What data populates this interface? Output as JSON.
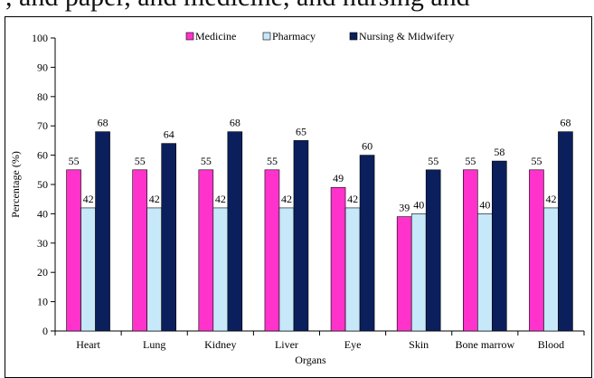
{
  "top_strip_text": ", and paper, and medicine, and nursing and",
  "chart_data": {
    "type": "bar",
    "categories": [
      "Heart",
      "Lung",
      "Kidney",
      "Liver",
      "Eye",
      "Skin",
      "Bone marrow",
      "Blood"
    ],
    "series": [
      {
        "name": "Medicine",
        "color": "#ff33cc",
        "values": [
          55,
          55,
          55,
          55,
          49,
          39,
          55,
          55
        ]
      },
      {
        "name": "Pharmacy",
        "color": "#c6e8f8",
        "values": [
          42,
          42,
          42,
          42,
          42,
          40,
          40,
          42
        ]
      },
      {
        "name": "Nursing & Midwifery",
        "color": "#0a1f5c",
        "values": [
          68,
          64,
          68,
          65,
          60,
          55,
          58,
          68
        ]
      }
    ],
    "xlabel": "Organs",
    "ylabel": "Percentage (%)",
    "ylim": [
      0,
      100
    ],
    "yticks": [
      0,
      10,
      20,
      30,
      40,
      50,
      60,
      70,
      80,
      90,
      100
    ],
    "grid": false,
    "legend_position": "top"
  }
}
